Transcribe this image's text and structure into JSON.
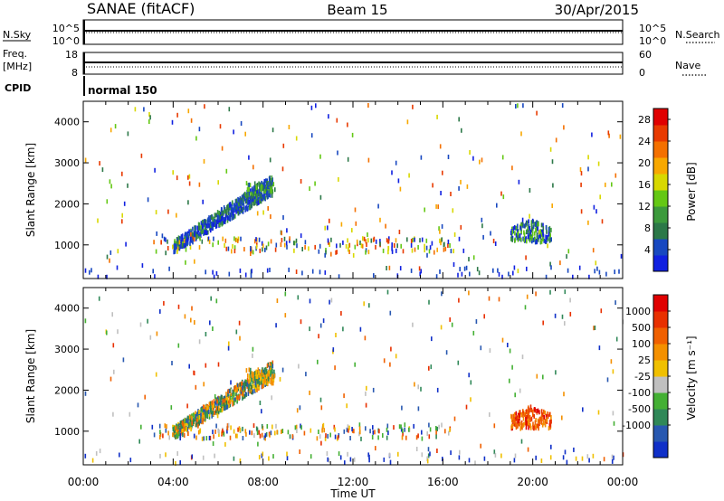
{
  "header": {
    "station": "SANAE (fitACF)",
    "beam": "Beam 15",
    "date": "30/Apr/2015"
  },
  "control_panels": {
    "nsky": {
      "left_label": "N.Sky",
      "left_ticks": [
        "10^5",
        "10^0"
      ],
      "right_ticks": [
        "10^5",
        "10^0"
      ],
      "right_label": "N.Search"
    },
    "freq": {
      "left_label_1": "Freq.",
      "left_label_2": "[MHz]",
      "left_ticks": [
        "18",
        "8"
      ],
      "right_ticks": [
        "60",
        "0"
      ],
      "right_label": "Nave"
    },
    "cpid": {
      "label": "CPID",
      "value": "normal 150"
    }
  },
  "chart_data": [
    {
      "type": "heatmap",
      "panel": "power",
      "ylabel": "Slant Range [km]",
      "xlabel": "",
      "xlim": [
        0,
        24
      ],
      "ylim": [
        180,
        4500
      ],
      "yticks": [
        "1000",
        "2000",
        "3000",
        "4000"
      ],
      "colorbar": {
        "label": "Power [dB]",
        "ticks": [
          "4",
          "8",
          "12",
          "16",
          "20",
          "24",
          "28"
        ],
        "range": [
          0,
          30
        ],
        "colors": [
          "#1020e0",
          "#1848c0",
          "#2c7848",
          "#3c9a3c",
          "#64c814",
          "#d8d800",
          "#f8a800",
          "#f47000",
          "#e83a00",
          "#e00000"
        ]
      },
      "features": [
        {
          "desc": "rising band",
          "x_start": 4.0,
          "x_end": 8.4,
          "range_start": 950,
          "range_end": 2450
        },
        {
          "desc": "patch",
          "x_start": 19.0,
          "x_end": 20.8,
          "range_start": 950,
          "range_end": 1600
        },
        {
          "desc": "near-range",
          "x_start": 3.0,
          "x_end": 16.5,
          "range_start": 800,
          "range_end": 1150
        }
      ]
    },
    {
      "type": "heatmap",
      "panel": "velocity",
      "ylabel": "Slant Range [km]",
      "xlabel": "Time UT",
      "xlim": [
        0,
        24
      ],
      "ylim": [
        180,
        4500
      ],
      "xticks": [
        "00:00",
        "04:00",
        "08:00",
        "12:00",
        "16:00",
        "20:00",
        "00:00"
      ],
      "yticks": [
        "1000",
        "2000",
        "3000",
        "4000"
      ],
      "colorbar": {
        "label": "Velocity [m s⁻¹]",
        "ticks": [
          "1000",
          "500",
          "100",
          "25",
          "-25",
          "-100",
          "-500",
          "-1000"
        ],
        "colors": [
          "#1030c8",
          "#2858b0",
          "#308858",
          "#44b034",
          "#c0c0c0",
          "#f0c000",
          "#f49000",
          "#f06000",
          "#e83000",
          "#e00000"
        ]
      }
    }
  ]
}
